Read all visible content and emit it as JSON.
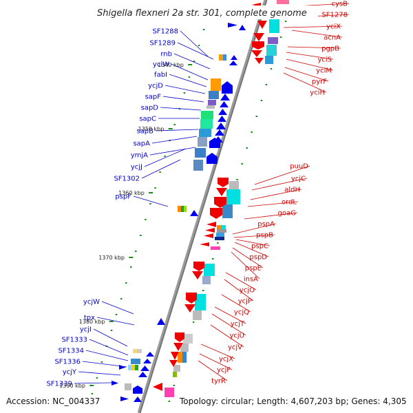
{
  "title": "Shigella flexneri 2a str. 301, complete genome",
  "accession": "Accession: NC_004337",
  "summary": "Topology: circular; Length: 4,607,203 bp; Genes: 4,305",
  "colors": {
    "reverse_strand_label": "#0000cc",
    "forward_strand_label": "#cc0000",
    "reverse_strand_arrow": "#0000ee",
    "forward_strand_arrow": "#ee0000",
    "backbone": "#808080",
    "tick": "#1a8a1a"
  },
  "kbp_ticks": [
    {
      "label": "1340 kbp",
      "pos": 1340
    },
    {
      "label": "1350 kbp",
      "pos": 1350
    },
    {
      "label": "1360 kbp",
      "pos": 1360
    },
    {
      "label": "1370 kbp",
      "pos": 1370
    },
    {
      "label": "1380 kbp",
      "pos": 1380
    },
    {
      "label": "1390 kbp",
      "pos": 1390
    }
  ],
  "reverse_genes": [
    "SF1288",
    "SF1289",
    "rnb",
    "yciW",
    "fabI",
    "ycjD",
    "sapF",
    "sapD",
    "sapC",
    "sapB",
    "sapA",
    "ymjA",
    "ycjJ",
    "SF1302",
    "pspF",
    "ycjW",
    "tpx",
    "ycjI",
    "SF1333",
    "SF1334",
    "SF1336",
    "ycjY",
    "SF1339"
  ],
  "forward_genes": [
    "cysB",
    "SF1278",
    "yciX",
    "acnA",
    "pgpB",
    "yciS",
    "yciM",
    "pyrF",
    "yciH",
    "puuD",
    "ycjC",
    "aldH",
    "ordL",
    "goaG",
    "pspA",
    "pspB",
    "pspC",
    "pspD",
    "pspE",
    "insA",
    "ycjO",
    "ycjP",
    "ycjQ",
    "ycjT",
    "ycjU",
    "ycjV",
    "ycjX",
    "ycjF",
    "tyrR"
  ]
}
